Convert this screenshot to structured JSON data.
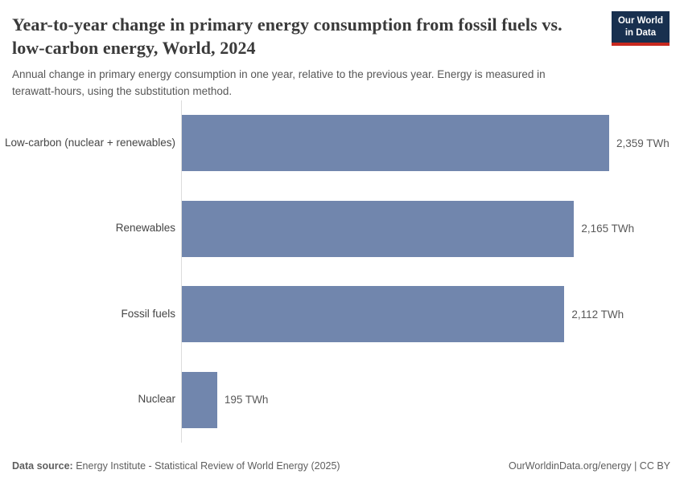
{
  "header": {
    "title": "Year-to-year change in primary energy consumption from fossil fuels vs. low-carbon energy, World, 2024",
    "subtitle": "Annual change in primary energy consumption in one year, relative to the previous year. Energy is measured in terawatt-hours, using the substitution method.",
    "logo": {
      "line1": "Our World",
      "line2": "in Data"
    }
  },
  "chart_data": {
    "type": "bar",
    "orientation": "horizontal",
    "title": "Year-to-year change in primary energy consumption from fossil fuels vs. low-carbon energy, World, 2024",
    "categories": [
      "Low-carbon (nuclear + renewables)",
      "Renewables",
      "Fossil fuels",
      "Nuclear"
    ],
    "values": [
      2359,
      2165,
      2112,
      195
    ],
    "value_labels": [
      "2,359 TWh",
      "2,165 TWh",
      "2,112 TWh",
      "195 TWh"
    ],
    "unit": "TWh",
    "xlim": [
      0,
      2359
    ],
    "grid": false,
    "legend": "none",
    "bar_color": "#7186ad",
    "axis_line_color": "#dcdcdc"
  },
  "footer": {
    "source_label": "Data source:",
    "source_text": " Energy Institute - Statistical Review of World Energy (2025)",
    "url": "OurWorldinData.org/energy",
    "divider": " | ",
    "license": "CC BY"
  },
  "colors": {
    "logo_navy": "#18304f",
    "logo_red": "#c8291f",
    "title_text": "#3a3a3a",
    "body_text": "#575757"
  }
}
